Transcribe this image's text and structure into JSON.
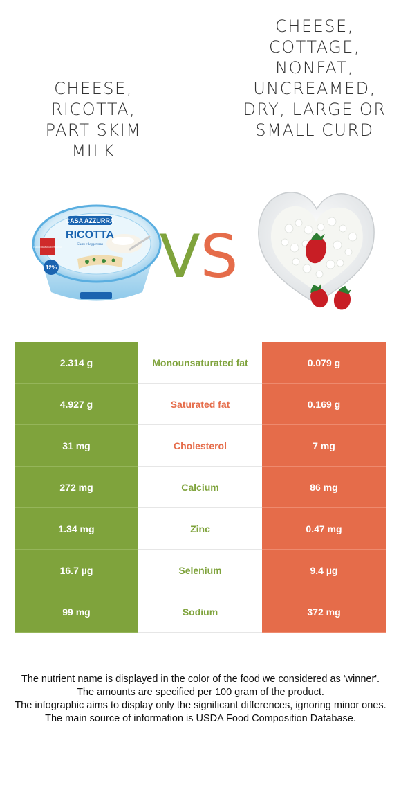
{
  "food_left": {
    "name": "Cheese, ricotta, part skim milk",
    "color": "#7fa33c"
  },
  "food_right": {
    "name": "Cheese, cottage, nonfat, uncreamed, dry, large or small curd",
    "color": "#e56c4a"
  },
  "vs": {
    "v": "V",
    "s": "S"
  },
  "rows": [
    {
      "left": "2.314 g",
      "nutrient": "Monounsaturated fat",
      "right": "0.079 g",
      "winner": "left"
    },
    {
      "left": "4.927 g",
      "nutrient": "Saturated fat",
      "right": "0.169 g",
      "winner": "right"
    },
    {
      "left": "31 mg",
      "nutrient": "Cholesterol",
      "right": "7 mg",
      "winner": "right"
    },
    {
      "left": "272 mg",
      "nutrient": "Calcium",
      "right": "86 mg",
      "winner": "left"
    },
    {
      "left": "1.34 mg",
      "nutrient": "Zinc",
      "right": "0.47 mg",
      "winner": "left"
    },
    {
      "left": "16.7 µg",
      "nutrient": "Selenium",
      "right": "9.4 µg",
      "winner": "left"
    },
    {
      "left": "99 mg",
      "nutrient": "Sodium",
      "right": "372 mg",
      "winner": "left"
    }
  ],
  "ricotta_package": {
    "brand": "CASA AZZURRA",
    "product": "RICOTTA",
    "tagline": "Gusto e leggerezza",
    "badge": "VERO FORMAGGIO ITALIANO",
    "fat_badge": "12%"
  },
  "footer": [
    "The nutrient name is displayed in the color of the food we considered as 'winner'.",
    "The amounts are specified per 100 gram of the product.",
    "The infographic aims to display only the significant differences, ignoring minor ones.",
    "The main source of information is USDA Food Composition Database."
  ]
}
